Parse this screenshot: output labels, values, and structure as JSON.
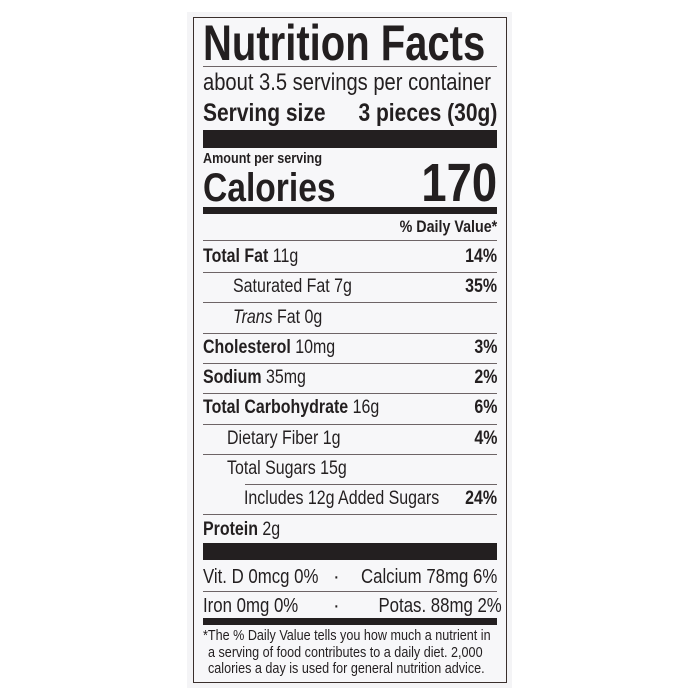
{
  "title": "Nutrition Facts",
  "servings_per_container": "about 3.5 servings per container",
  "serving_size": {
    "label": "Serving size",
    "value": "3 pieces (30g)"
  },
  "amount_per_serving": "Amount per serving",
  "calories": {
    "label": "Calories",
    "value": "170"
  },
  "daily_value_header": "% Daily Value*",
  "nutrients": [
    {
      "name": "Total Fat",
      "amount": "11g",
      "dv": "14%"
    },
    {
      "name": "Saturated Fat",
      "amount": "7g",
      "dv": "35%"
    },
    {
      "name_italic": "Trans",
      "name": "Fat",
      "amount": "0g",
      "dv": ""
    },
    {
      "name": "Cholesterol",
      "amount": "10mg",
      "dv": "3%"
    },
    {
      "name": "Sodium",
      "amount": "35mg",
      "dv": "2%"
    },
    {
      "name": "Total Carbohydrate",
      "amount": "16g",
      "dv": "6%"
    },
    {
      "name": "Dietary Fiber",
      "amount": "1g",
      "dv": "4%"
    },
    {
      "name": "Total Sugars",
      "amount": "15g",
      "dv": ""
    },
    {
      "name": "Includes 12g Added Sugars",
      "amount": "",
      "dv": "24%"
    },
    {
      "name": "Protein",
      "amount": "2g",
      "dv": ""
    }
  ],
  "vitamins": {
    "vit_d": "Vit. D 0mcg 0%",
    "calcium": "Calcium 78mg 6%",
    "iron": "Iron 0mg 0%",
    "potassium": "Potas. 88mg 2%",
    "separator": "·"
  },
  "footnote": {
    "line1": "*The % Daily Value tells you how much a nutrient in",
    "line2": "a serving of food contributes to a daily diet. 2,000",
    "line3": "calories a day is used for general nutrition advice."
  }
}
